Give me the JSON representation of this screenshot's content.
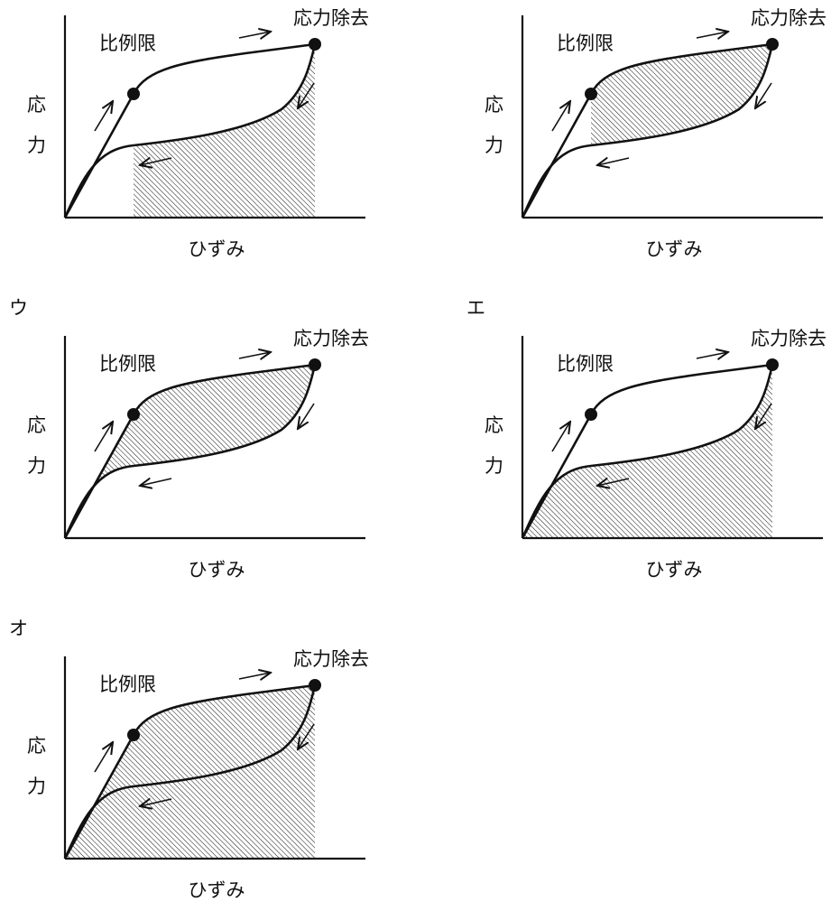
{
  "panels": [
    {
      "region": "under-unloading",
      "proportional_limit": "比例限",
      "unload": "応力除去",
      "y_label": [
        "応",
        "力"
      ],
      "x_label": "ひずみ"
    },
    {
      "region": "between-curves-from-limit",
      "proportional_limit": "比例限",
      "unload": "応力除去",
      "y_label": [
        "応",
        "力"
      ],
      "x_label": "ひずみ"
    },
    {
      "option": "ウ",
      "region": "between-curves",
      "proportional_limit": "比例限",
      "unload": "応力除去",
      "y_label": [
        "応",
        "力"
      ],
      "x_label": "ひずみ"
    },
    {
      "option": "エ",
      "region": "under-unloading-full",
      "proportional_limit": "比例限",
      "unload": "応力除去",
      "y_label": [
        "応",
        "力"
      ],
      "x_label": "ひずみ"
    },
    {
      "option": "オ",
      "region": "under-loading",
      "proportional_limit": "比例限",
      "unload": "応力除去",
      "y_label": [
        "応",
        "力"
      ],
      "x_label": "ひずみ"
    }
  ]
}
